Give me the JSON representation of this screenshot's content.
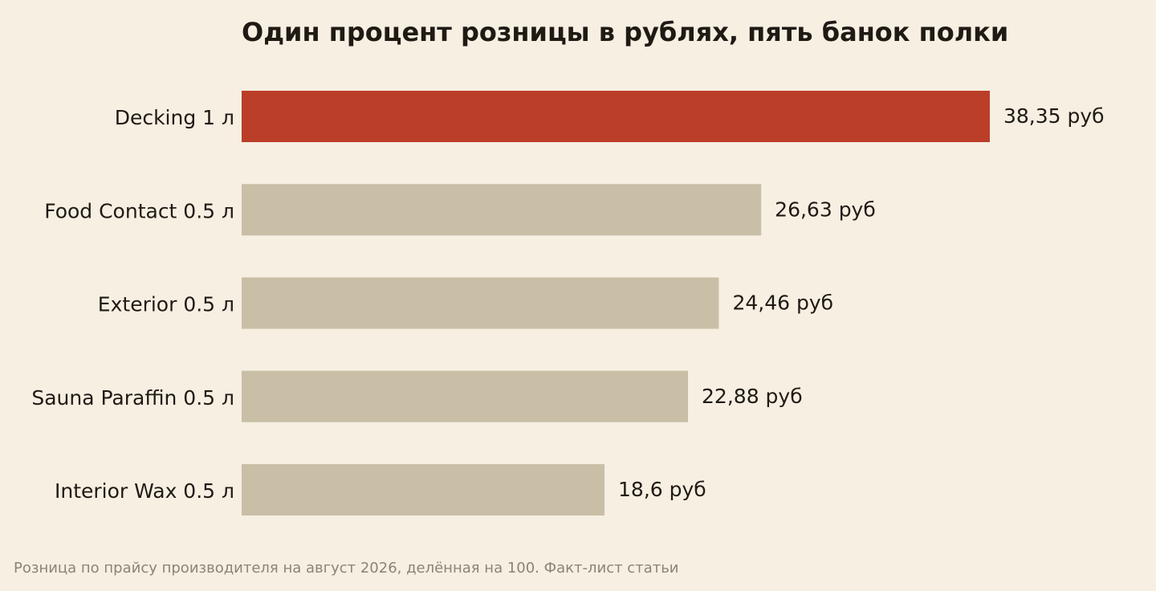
{
  "chart_data": {
    "type": "bar",
    "orientation": "horizontal",
    "title": "Один процент розницы в рублях, пять банок полки",
    "caption": "Розница по прайсу производителя на август 2026, делённая на 100. Факт-лист статьи",
    "categories": [
      "Decking 1 л",
      "Food Contact 0.5 л",
      "Exterior 0.5 л",
      "Sauna Paraffin 0.5 л",
      "Interior Wax 0.5 л"
    ],
    "values": [
      38.35,
      26.63,
      24.46,
      22.88,
      18.6
    ],
    "value_labels": [
      "38,35 руб",
      "26,63 руб",
      "24,46 руб",
      "22,88 руб",
      "18,6 руб"
    ],
    "highlight_index": 0,
    "xlim": [
      0,
      38.35
    ],
    "grid": false,
    "legend": "none",
    "colors": {
      "background": "#f6efe2",
      "highlight": "#bb3e28",
      "default": "#c9bfa7",
      "text": "#1f1a14",
      "caption": "#8a8478"
    }
  }
}
